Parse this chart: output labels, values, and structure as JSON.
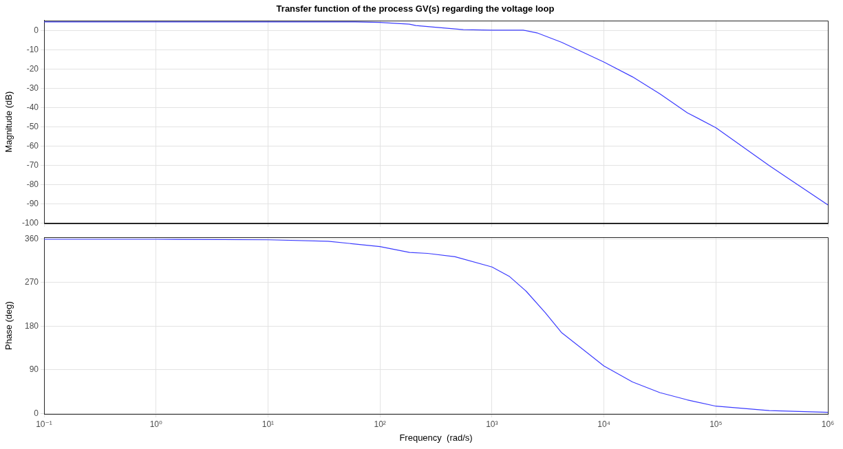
{
  "chart_data": [
    {
      "type": "line",
      "title": "Transfer function of the process GV(s) regarding the voltage loop",
      "ylabel": "Magnitude (dB)",
      "log": "x",
      "grid": true,
      "marker": "none",
      "tick_labels": "y",
      "xlim": [
        0.1,
        1000000
      ],
      "xticks": [
        {
          "value": 0.1,
          "label": null
        },
        {
          "value": 1,
          "label": null
        },
        {
          "value": 10,
          "label": null
        },
        {
          "value": 100,
          "label": null
        },
        {
          "value": 1000,
          "label": null
        },
        {
          "value": 10000,
          "label": null
        },
        {
          "value": 100000,
          "label": null
        },
        {
          "value": 1000000,
          "label": null
        }
      ],
      "ylim": [
        -100,
        5.5
      ],
      "yticks": [
        -100,
        -90,
        -80,
        -70,
        -60,
        -50,
        -40,
        -30,
        -20,
        -10,
        0
      ],
      "series": [
        {
          "color": "#3b3bff",
          "x": [
            0.1,
            1,
            10,
            60,
            100,
            183,
            209,
            300,
            555,
            1000,
            1905,
            2525,
            4190,
            10000,
            18030,
            31620,
            55500,
            100000,
            299000,
            1000000
          ],
          "values": [
            4.7,
            4.7,
            4.7,
            4.7,
            4.4,
            3.5,
            2.8,
            2.0,
            0.7,
            0.4,
            0.4,
            -1.0,
            -5.9,
            -16.2,
            -23.9,
            -32.7,
            -42.5,
            -50.3,
            -70,
            -90.4
          ]
        }
      ]
    },
    {
      "type": "line",
      "xlabel": "Frequency  (rad/s)",
      "ylabel": "Phase (deg)",
      "log": "x",
      "grid": true,
      "marker": "none",
      "xlim": [
        0.1,
        1000000
      ],
      "xticks": [
        {
          "value": 0.1,
          "label": "10⁻¹"
        },
        {
          "value": 1,
          "label": "10⁰"
        },
        {
          "value": 10,
          "label": "10¹"
        },
        {
          "value": 100,
          "label": "10²"
        },
        {
          "value": 1000,
          "label": "10³"
        },
        {
          "value": 10000,
          "label": "10⁴"
        },
        {
          "value": 100000,
          "label": "10⁵"
        },
        {
          "value": 1000000,
          "label": "10⁶"
        }
      ],
      "ylim": [
        -1,
        363
      ],
      "yticks": [
        0,
        90,
        180,
        270,
        360
      ],
      "series": [
        {
          "color": "#3b3bff",
          "x": [
            0.1,
            1,
            10,
            34.4,
            100,
            184,
            266,
            468,
            1000,
            1440,
            2020,
            2990,
            4170,
            10000,
            18000,
            31600,
            55500,
            100000,
            300000,
            1000000
          ],
          "values": [
            359,
            359,
            358,
            355,
            344,
            332,
            330,
            323,
            302,
            282,
            252,
            208,
            167,
            98,
            65,
            43,
            28,
            15,
            6,
            2.5
          ]
        }
      ]
    }
  ]
}
